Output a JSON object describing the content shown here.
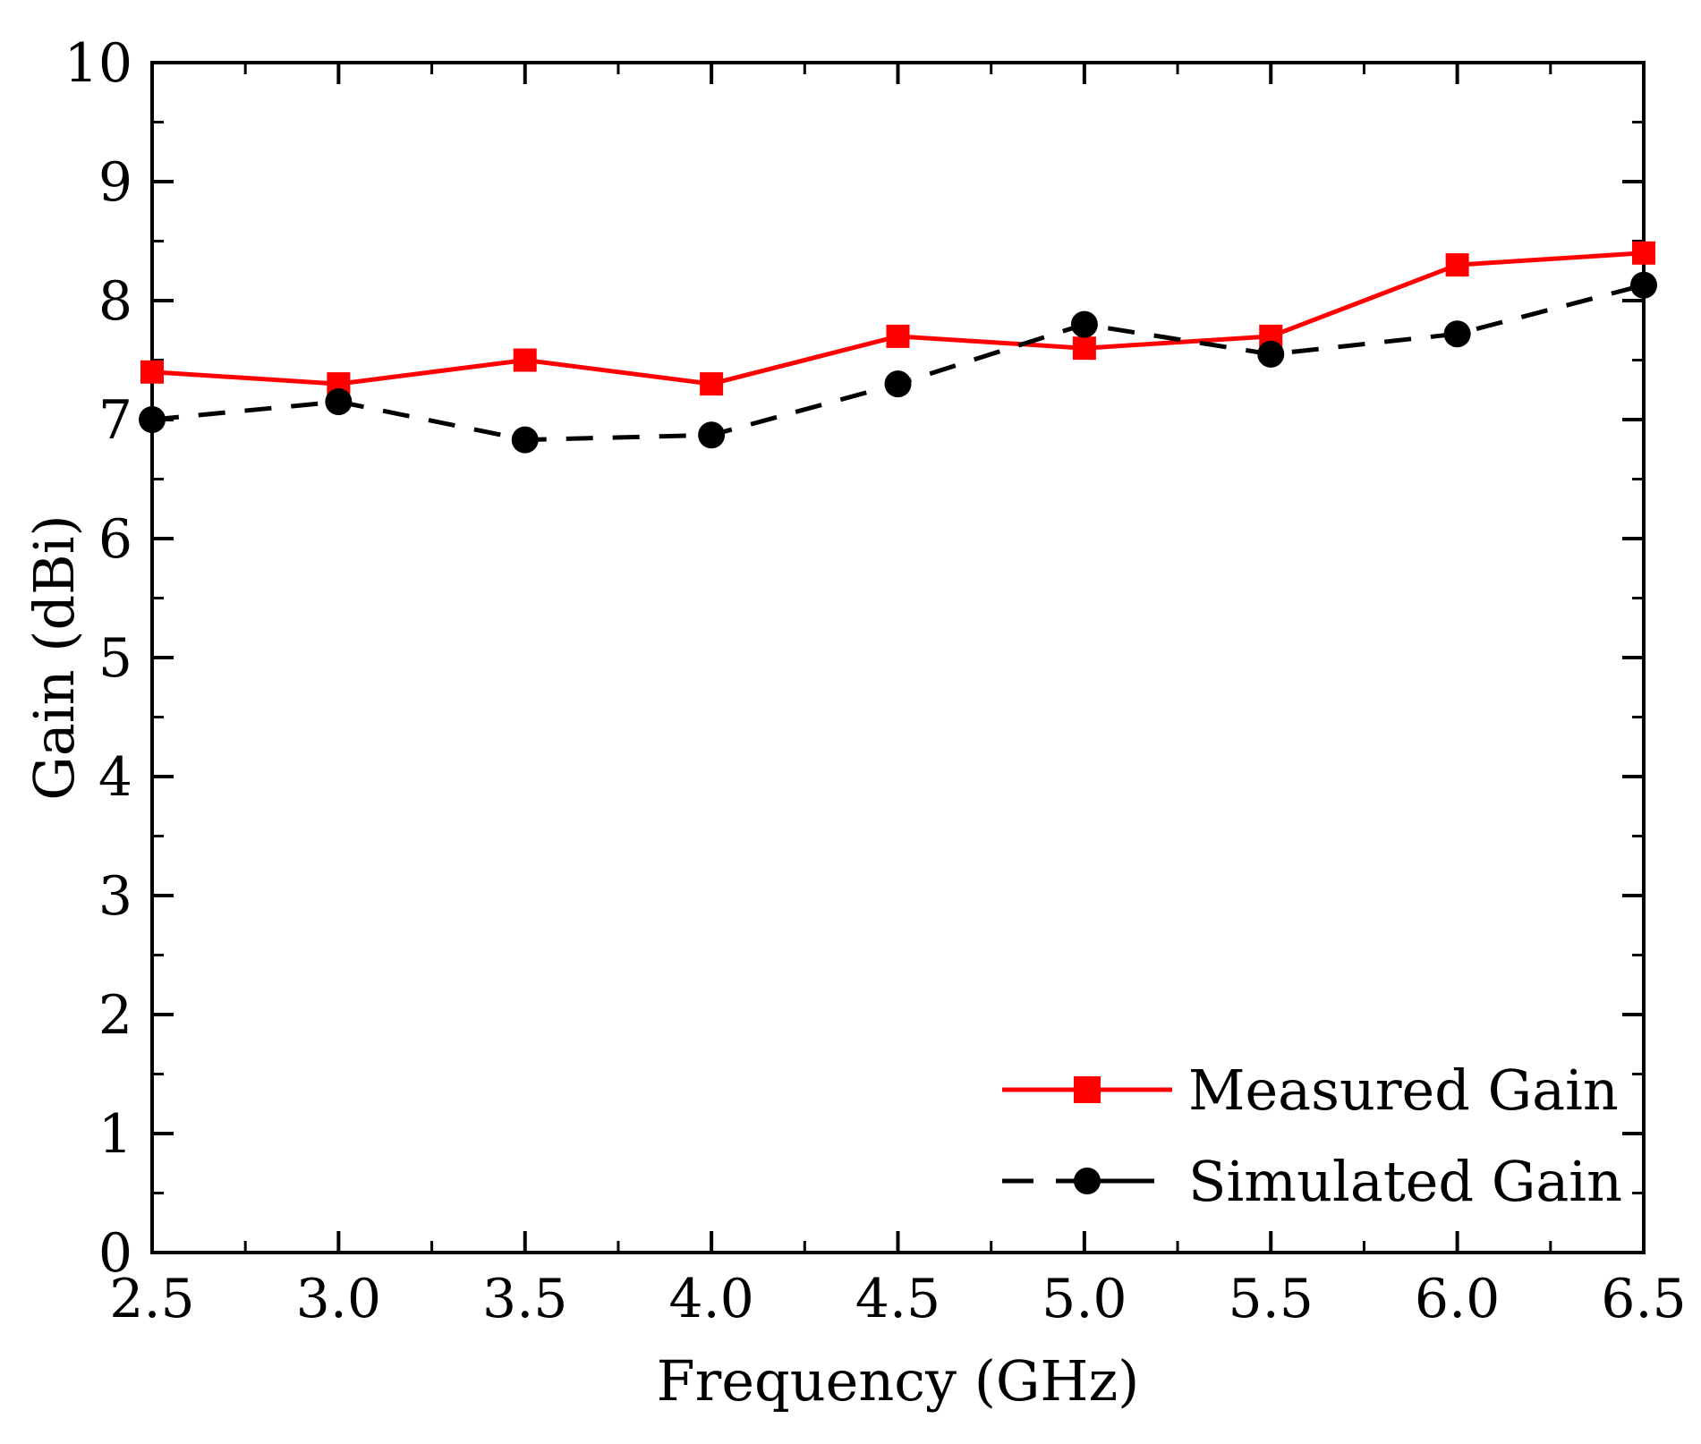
{
  "chart_data": {
    "type": "line",
    "xlabel": "Frequency (GHz)",
    "ylabel": "Gain (dBi)",
    "xlim": [
      2.5,
      6.5
    ],
    "ylim": [
      0,
      10
    ],
    "xticks": [
      "2.5",
      "3.0",
      "3.5",
      "4.0",
      "4.5",
      "5.0",
      "5.5",
      "6.0",
      "6.5"
    ],
    "yticks": [
      "0",
      "1",
      "2",
      "3",
      "4",
      "5",
      "6",
      "7",
      "8",
      "9",
      "10"
    ],
    "legend_position": "bottom-right",
    "grid": false,
    "series": [
      {
        "name": "Measured Gain",
        "color": "#ff0000",
        "line": "solid",
        "marker": "square",
        "x": [
          2.5,
          3.0,
          3.5,
          4.0,
          4.5,
          5.0,
          5.5,
          6.0,
          6.5
        ],
        "y": [
          7.4,
          7.3,
          7.5,
          7.3,
          7.7,
          7.6,
          7.7,
          8.3,
          8.4
        ]
      },
      {
        "name": "Simulated Gain",
        "color": "#000000",
        "line": "dashed",
        "marker": "circle",
        "x": [
          2.5,
          3.0,
          3.5,
          4.0,
          4.5,
          5.0,
          5.5,
          6.0,
          6.5
        ],
        "y": [
          7.0,
          7.15,
          6.83,
          6.87,
          7.3,
          7.8,
          7.55,
          7.72,
          8.13
        ]
      }
    ]
  }
}
